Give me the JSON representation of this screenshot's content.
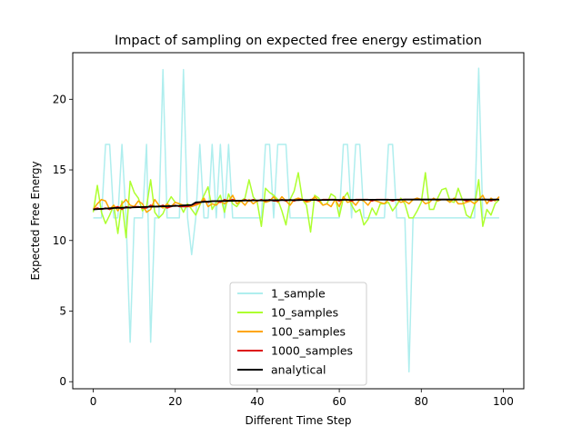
{
  "chart_data": {
    "type": "line",
    "title": "Impact of sampling on expected free energy estimation",
    "xlabel": "Different Time Step",
    "ylabel": "Expected Free Energy",
    "xlim": [
      -5,
      105
    ],
    "ylim": [
      -0.5,
      23.3
    ],
    "xticks": [
      0,
      20,
      40,
      60,
      80,
      100
    ],
    "yticks": [
      0,
      5,
      10,
      15,
      20
    ],
    "legend_position": "lower-center",
    "grid": false,
    "series": [
      {
        "name": "1_sample",
        "color": "#afeeee",
        "values": [
          11.6,
          11.6,
          11.6,
          16.8,
          16.8,
          11.6,
          11.6,
          16.8,
          11.6,
          2.8,
          11.6,
          11.6,
          11.6,
          16.8,
          2.8,
          11.6,
          11.6,
          22.1,
          11.6,
          11.6,
          11.6,
          11.6,
          22.1,
          11.6,
          9.0,
          11.6,
          16.8,
          11.6,
          11.6,
          16.8,
          11.6,
          16.8,
          11.6,
          16.8,
          11.6,
          11.6,
          11.6,
          11.6,
          11.6,
          11.6,
          11.6,
          11.6,
          16.8,
          16.8,
          11.6,
          16.8,
          16.8,
          16.8,
          11.6,
          11.6,
          11.6,
          11.6,
          11.6,
          11.6,
          11.6,
          11.6,
          11.6,
          11.6,
          11.6,
          11.6,
          11.6,
          16.8,
          16.8,
          11.6,
          16.8,
          16.8,
          11.6,
          11.6,
          11.6,
          11.6,
          11.6,
          11.6,
          16.8,
          16.8,
          11.6,
          11.6,
          11.6,
          0.7,
          11.6,
          11.6,
          11.6,
          11.6,
          11.6,
          11.6,
          11.6,
          11.6,
          11.6,
          11.6,
          11.6,
          11.6,
          11.6,
          11.6,
          11.6,
          11.6,
          22.2,
          11.6,
          11.6,
          11.6,
          11.6,
          11.6
        ]
      },
      {
        "name": "10_samples",
        "color": "#adff2f",
        "values": [
          12.0,
          13.9,
          12.0,
          11.2,
          11.8,
          12.5,
          10.5,
          12.8,
          10.2,
          14.2,
          13.4,
          13.0,
          12.1,
          12.4,
          14.3,
          12.0,
          11.6,
          11.9,
          12.6,
          13.1,
          12.7,
          12.6,
          12.0,
          12.6,
          12.2,
          11.8,
          12.5,
          13.2,
          13.8,
          12.2,
          12.7,
          13.2,
          12.0,
          13.3,
          12.6,
          12.4,
          12.8,
          13.0,
          14.3,
          13.1,
          12.7,
          11.0,
          13.7,
          13.4,
          13.2,
          12.9,
          12.1,
          11.1,
          12.9,
          13.5,
          14.8,
          12.9,
          12.5,
          10.6,
          13.2,
          13.0,
          12.5,
          12.6,
          13.3,
          13.1,
          11.7,
          13.0,
          13.4,
          12.5,
          12.0,
          12.2,
          11.1,
          11.5,
          12.3,
          11.8,
          12.6,
          12.6,
          12.7,
          12.1,
          12.5,
          13.0,
          12.6,
          11.6,
          11.6,
          12.1,
          12.7,
          14.8,
          12.2,
          12.2,
          13.0,
          13.6,
          13.7,
          12.8,
          12.7,
          13.7,
          12.9,
          11.8,
          11.6,
          12.5,
          14.3,
          11.0,
          12.2,
          11.8,
          12.6,
          12.9
        ]
      },
      {
        "name": "100_samples",
        "color": "#ffa500",
        "values": [
          12.2,
          12.6,
          12.9,
          12.8,
          12.2,
          12.5,
          12.1,
          12.6,
          12.9,
          12.5,
          12.4,
          12.8,
          12.6,
          12.0,
          12.2,
          12.9,
          12.5,
          12.3,
          12.6,
          12.4,
          12.7,
          12.6,
          12.5,
          12.4,
          12.4,
          12.5,
          12.6,
          13.0,
          12.4,
          12.6,
          12.5,
          12.8,
          12.6,
          12.8,
          13.2,
          12.6,
          12.8,
          12.5,
          12.9,
          12.6,
          12.8,
          12.9,
          12.7,
          12.8,
          13.1,
          12.7,
          13.1,
          12.8,
          12.5,
          12.9,
          13.0,
          12.9,
          12.7,
          12.8,
          13.1,
          12.8,
          12.5,
          12.6,
          12.4,
          12.9,
          12.4,
          13.1,
          12.7,
          12.8,
          12.5,
          12.9,
          12.8,
          12.5,
          12.9,
          12.8,
          12.7,
          12.6,
          12.9,
          12.8,
          12.9,
          12.7,
          12.8,
          12.6,
          12.9,
          13.0,
          12.9,
          12.6,
          12.7,
          13.0,
          12.8,
          12.9,
          12.9,
          12.7,
          13.0,
          12.6,
          12.6,
          12.7,
          12.8,
          12.6,
          12.9,
          13.2,
          12.6,
          13.0,
          12.8,
          13.1
        ]
      },
      {
        "name": "1000_samples",
        "color": "#dd1111",
        "values": [
          12.2,
          12.3,
          12.2,
          12.3,
          12.2,
          12.3,
          12.4,
          12.2,
          12.4,
          12.3,
          12.4,
          12.4,
          12.3,
          12.3,
          12.5,
          12.4,
          12.4,
          12.5,
          12.3,
          12.4,
          12.5,
          12.4,
          12.4,
          12.4,
          12.5,
          12.6,
          12.7,
          12.8,
          12.7,
          12.8,
          12.8,
          12.7,
          12.9,
          12.8,
          12.9,
          12.8,
          12.8,
          12.9,
          12.8,
          12.9,
          12.8,
          12.9,
          12.8,
          12.9,
          12.8,
          12.8,
          12.9,
          12.8,
          12.9,
          12.8,
          12.9,
          12.9,
          12.8,
          12.9,
          12.9,
          12.8,
          12.9,
          12.9,
          12.9,
          12.9,
          12.8,
          12.9,
          12.9,
          12.8,
          12.9,
          12.9,
          12.9,
          12.9,
          12.8,
          12.9,
          12.9,
          12.9,
          12.9,
          12.8,
          12.9,
          12.9,
          12.9,
          12.9,
          12.9,
          12.9,
          12.9,
          12.9,
          12.9,
          12.9,
          12.9,
          12.9,
          12.9,
          12.9,
          12.9,
          12.9,
          12.9,
          12.8,
          12.9,
          12.9,
          12.9,
          12.9,
          12.9,
          12.8,
          12.9,
          12.9
        ]
      },
      {
        "name": "analytical",
        "color": "#000000",
        "values": [
          12.2,
          12.22,
          12.24,
          12.26,
          12.28,
          12.3,
          12.31,
          12.32,
          12.33,
          12.34,
          12.35,
          12.36,
          12.37,
          12.38,
          12.39,
          12.4,
          12.41,
          12.42,
          12.43,
          12.44,
          12.45,
          12.46,
          12.48,
          12.5,
          12.52,
          12.7,
          12.72,
          12.74,
          12.76,
          12.78,
          12.79,
          12.8,
          12.8,
          12.81,
          12.81,
          12.82,
          12.82,
          12.83,
          12.83,
          12.84,
          12.84,
          12.84,
          12.85,
          12.85,
          12.85,
          12.85,
          12.86,
          12.86,
          12.86,
          12.86,
          12.86,
          12.87,
          12.87,
          12.87,
          12.87,
          12.87,
          12.87,
          12.87,
          12.88,
          12.88,
          12.88,
          12.88,
          12.88,
          12.88,
          12.88,
          12.88,
          12.89,
          12.89,
          12.89,
          12.89,
          12.89,
          12.89,
          12.89,
          12.89,
          12.89,
          12.89,
          12.9,
          12.9,
          12.9,
          12.9,
          12.9,
          12.9,
          12.9,
          12.9,
          12.9,
          12.9,
          12.9,
          12.9,
          12.9,
          12.9,
          12.9,
          12.9,
          12.9,
          12.9,
          12.9,
          12.9,
          12.9,
          12.9,
          12.9,
          12.9
        ]
      }
    ]
  }
}
